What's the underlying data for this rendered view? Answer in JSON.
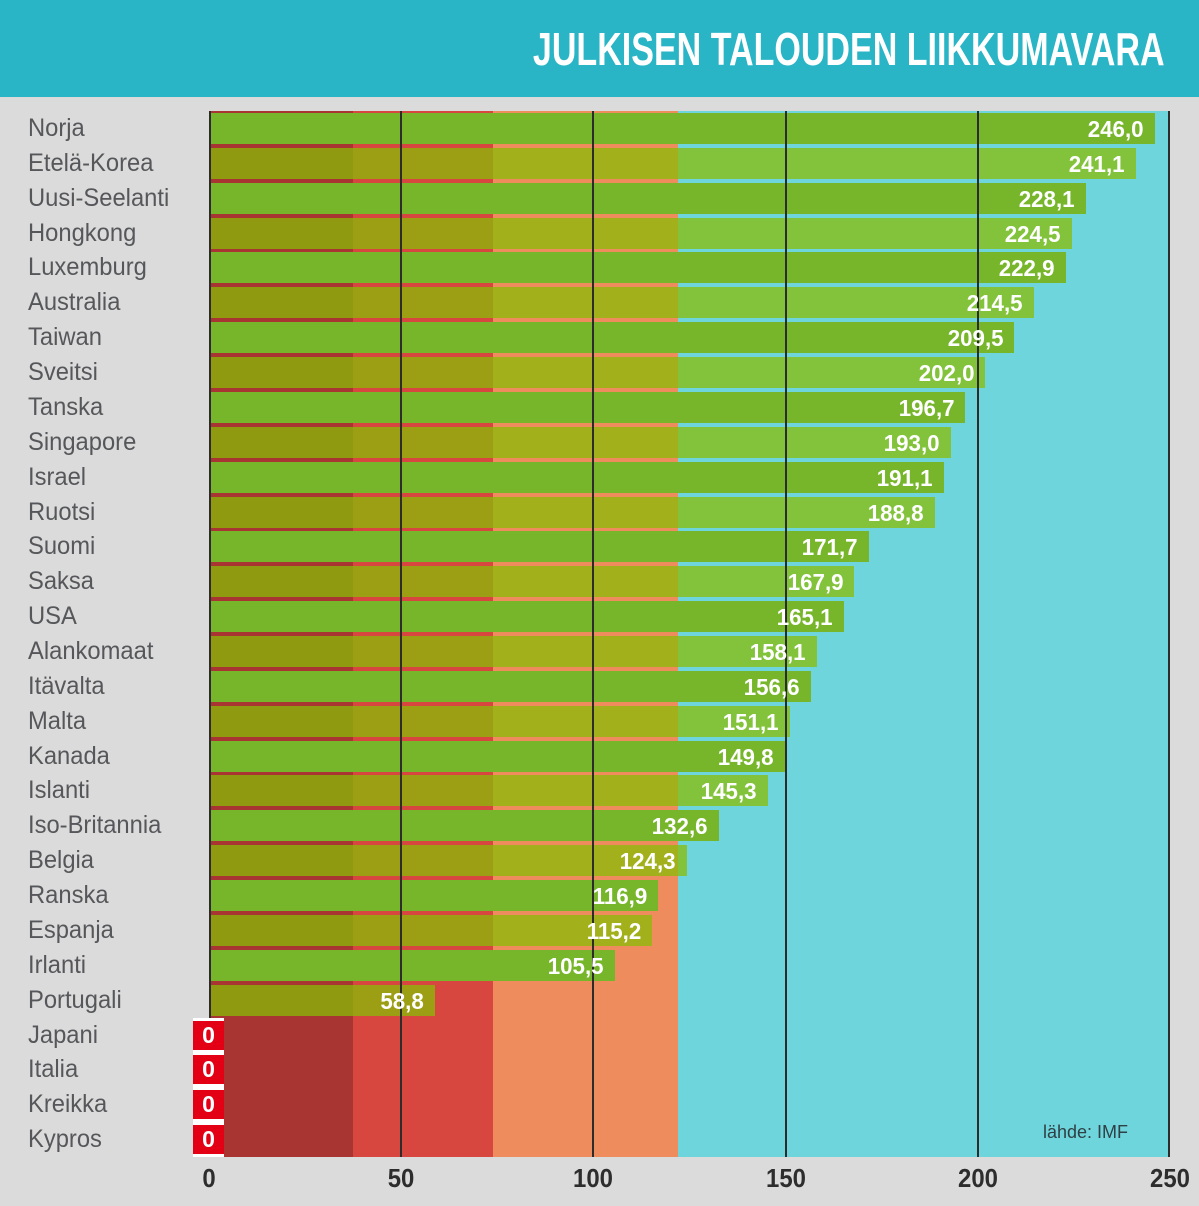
{
  "header": {
    "title": "JULKISEN TALOUDEN LIIKKUMAVARA"
  },
  "colors": {
    "header_bg": "#29b5c5",
    "page_bg": "#dbdbdb",
    "plot_bg": "#6fd5dc",
    "gridline": "#2c2c2c",
    "category_label": "#56575a",
    "tick_label": "#2d2d2d",
    "value_label": "#ffffff",
    "source_label": "#2e4045"
  },
  "chart_data": {
    "type": "bar",
    "orientation": "horizontal",
    "title": "JULKISEN TALOUDEN LIIKKUMAVARA",
    "source": "lähde: IMF",
    "categories": [
      "Norja",
      "Etelä-Korea",
      "Uusi-Seelanti",
      "Hongkong",
      "Luxemburg",
      "Australia",
      "Taiwan",
      "Sveitsi",
      "Tanska",
      "Singapore",
      "Israel",
      "Ruotsi",
      "Suomi",
      "Saksa",
      "USA",
      "Alankomaat",
      "Itävalta",
      "Malta",
      "Kanada",
      "Islanti",
      "Iso-Britannia",
      "Belgia",
      "Ranska",
      "Espanja",
      "Irlanti",
      "Portugali",
      "Japani",
      "Italia",
      "Kreikka",
      "Kypros"
    ],
    "values": [
      246.0,
      241.1,
      228.1,
      224.5,
      222.9,
      214.5,
      209.5,
      202.0,
      196.7,
      193.0,
      191.1,
      188.8,
      171.7,
      167.9,
      165.1,
      158.1,
      156.6,
      151.1,
      149.8,
      145.3,
      132.6,
      124.3,
      116.9,
      115.2,
      105.5,
      58.8,
      0,
      0,
      0,
      0
    ],
    "value_labels": [
      "246,0",
      "241,1",
      "228,1",
      "224,5",
      "222,9",
      "214,5",
      "209,5",
      "202,0",
      "196,7",
      "193,0",
      "191,1",
      "188,8",
      "171,7",
      "167,9",
      "165,1",
      "158,1",
      "156,6",
      "151,1",
      "149,8",
      "145,3",
      "132,6",
      "124,3",
      "116,9",
      "115,2",
      "105,5",
      "58,8",
      "0",
      "0",
      "0",
      "0"
    ],
    "xlim": [
      0,
      250
    ],
    "xticks": [
      0,
      50,
      100,
      150,
      200,
      250
    ],
    "grid": true,
    "legend": false,
    "background_zones": [
      {
        "name": "dark-red",
        "from": 0,
        "to": 37.5,
        "color": "#a83531"
      },
      {
        "name": "red",
        "from": 37.5,
        "to": 73.9,
        "color": "#d8473f"
      },
      {
        "name": "orange",
        "from": 73.9,
        "to": 122,
        "color": "#ee8c5e"
      },
      {
        "name": "cyan",
        "from": 122,
        "to": 250,
        "color": "#6fd5dc"
      }
    ],
    "bar_color_solid": "#77b62b",
    "bar_color_translucent": "rgba(136,188,6,0.75)",
    "zero_badge": {
      "label": "0",
      "color": "#e30015"
    }
  }
}
